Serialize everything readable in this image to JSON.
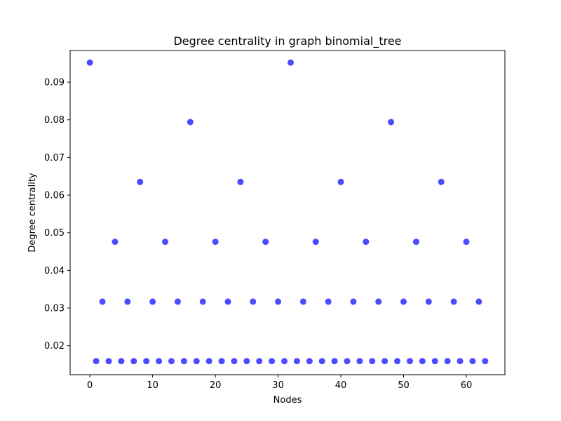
{
  "chart_data": {
    "type": "scatter",
    "title": "Degree centrality in graph binomial_tree",
    "xlabel": "Nodes",
    "ylabel": "Degree centrality",
    "xlim": [
      -3.15,
      66.15
    ],
    "ylim": [
      0.0123,
      0.0984
    ],
    "xticks": [
      0,
      10,
      20,
      30,
      40,
      50,
      60
    ],
    "yticks": [
      0.02,
      0.03,
      0.04,
      0.05,
      0.06,
      0.07,
      0.08,
      0.09
    ],
    "ytick_labels": [
      "0.02",
      "0.03",
      "0.04",
      "0.05",
      "0.06",
      "0.07",
      "0.08",
      "0.09"
    ],
    "grid": false,
    "marker_color": "#0000ff",
    "marker_alpha": 0.7,
    "x": [
      0,
      1,
      2,
      3,
      4,
      5,
      6,
      7,
      8,
      9,
      10,
      11,
      12,
      13,
      14,
      15,
      16,
      17,
      18,
      19,
      20,
      21,
      22,
      23,
      24,
      25,
      26,
      27,
      28,
      29,
      30,
      31,
      32,
      33,
      34,
      35,
      36,
      37,
      38,
      39,
      40,
      41,
      42,
      43,
      44,
      45,
      46,
      47,
      48,
      49,
      50,
      51,
      52,
      53,
      54,
      55,
      56,
      57,
      58,
      59,
      60,
      61,
      62,
      63
    ],
    "y": [
      0.0952,
      0.0159,
      0.0317,
      0.0159,
      0.0476,
      0.0159,
      0.0317,
      0.0159,
      0.0635,
      0.0159,
      0.0317,
      0.0159,
      0.0476,
      0.0159,
      0.0317,
      0.0159,
      0.0794,
      0.0159,
      0.0317,
      0.0159,
      0.0476,
      0.0159,
      0.0317,
      0.0159,
      0.0635,
      0.0159,
      0.0317,
      0.0159,
      0.0476,
      0.0159,
      0.0317,
      0.0159,
      0.0952,
      0.0159,
      0.0317,
      0.0159,
      0.0476,
      0.0159,
      0.0317,
      0.0159,
      0.0635,
      0.0159,
      0.0317,
      0.0159,
      0.0476,
      0.0159,
      0.0317,
      0.0159,
      0.0794,
      0.0159,
      0.0317,
      0.0159,
      0.0476,
      0.0159,
      0.0317,
      0.0159,
      0.0635,
      0.0159,
      0.0317,
      0.0159,
      0.0476,
      0.0159,
      0.0317,
      0.0159
    ]
  }
}
